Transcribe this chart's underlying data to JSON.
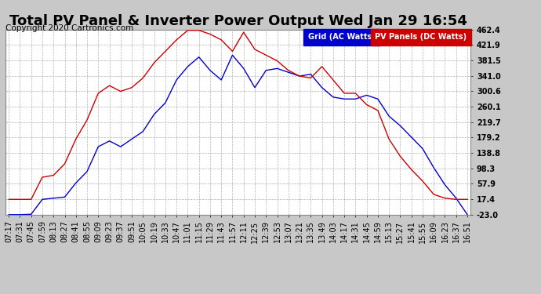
{
  "title": "Total PV Panel & Inverter Power Output Wed Jan 29 16:54",
  "copyright": "Copyright 2020 Cartronics.com",
  "legend_entries": [
    "Grid (AC Watts)",
    "PV Panels (DC Watts)"
  ],
  "legend_facecolors": [
    "#0000cc",
    "#cc0000"
  ],
  "line_colors": [
    "#0000cc",
    "#cc0000"
  ],
  "fig_bg_color": "#c8c8c8",
  "plot_bg_color": "#ffffff",
  "grid_color": "#aaaaaa",
  "title_fontsize": 13,
  "tick_fontsize": 7,
  "copyright_fontsize": 7.5,
  "yticks": [
    462.4,
    421.9,
    381.5,
    341.0,
    300.6,
    260.1,
    219.7,
    179.2,
    138.8,
    98.3,
    57.9,
    17.4,
    -23.0
  ],
  "ylim": [
    -23.0,
    462.4
  ],
  "xtick_labels": [
    "07:17",
    "07:31",
    "07:45",
    "07:59",
    "08:13",
    "08:27",
    "08:41",
    "08:55",
    "09:09",
    "09:23",
    "09:37",
    "09:51",
    "10:05",
    "10:19",
    "10:33",
    "10:47",
    "11:01",
    "11:15",
    "11:29",
    "11:43",
    "11:57",
    "12:11",
    "12:25",
    "12:39",
    "12:53",
    "13:07",
    "13:21",
    "13:35",
    "13:49",
    "14:03",
    "14:17",
    "14:31",
    "14:45",
    "14:59",
    "15:13",
    "15:27",
    "15:41",
    "15:55",
    "16:09",
    "16:23",
    "16:37",
    "16:51"
  ],
  "blue_data": [
    -23,
    -23,
    -22,
    17,
    20,
    23,
    60,
    90,
    155,
    170,
    155,
    175,
    195,
    240,
    270,
    330,
    365,
    390,
    355,
    330,
    395,
    360,
    310,
    355,
    360,
    350,
    340,
    345,
    310,
    285,
    280,
    280,
    290,
    280,
    235,
    210,
    180,
    150,
    100,
    55,
    20,
    -23
  ],
  "red_data": [
    17,
    17,
    17,
    75,
    80,
    110,
    175,
    225,
    295,
    315,
    300,
    310,
    335,
    375,
    405,
    435,
    460,
    460,
    450,
    435,
    405,
    455,
    410,
    395,
    380,
    355,
    340,
    335,
    365,
    330,
    295,
    295,
    265,
    250,
    175,
    130,
    95,
    65,
    30,
    20,
    17,
    17
  ]
}
